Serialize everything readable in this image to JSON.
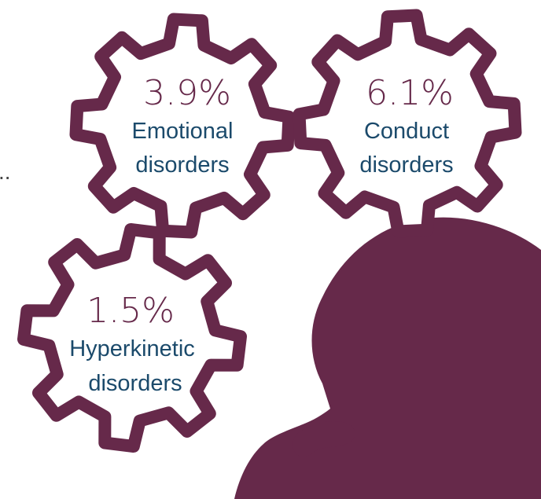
{
  "colors": {
    "gear_stroke": "#66294a",
    "percent_text": "#66294a",
    "label_text": "#1b4a6b",
    "silhouette": "#66294a"
  },
  "ellipsis": "..",
  "gears": [
    {
      "percent": "3.9%",
      "label_line1": "Emotional",
      "label_line2": "disorders"
    },
    {
      "percent": "6.1%",
      "label_line1": "Conduct",
      "label_line2": "disorders"
    },
    {
      "percent": "1.5%",
      "label_line1": "Hyperkinetic",
      "label_line2": "disorders"
    }
  ]
}
